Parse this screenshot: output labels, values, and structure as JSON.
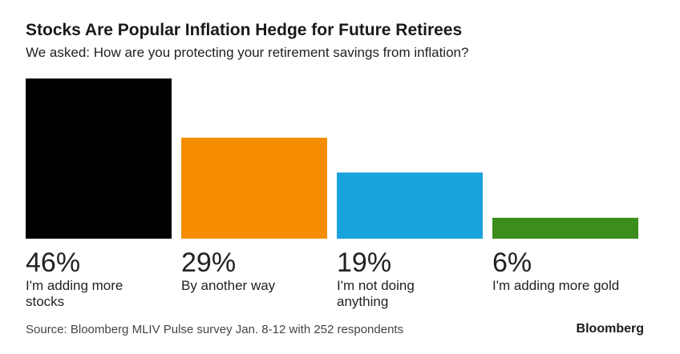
{
  "chart_data": {
    "type": "bar",
    "title": "Stocks Are Popular Inflation Hedge for Future Retirees",
    "subtitle": "We asked: How are you protecting your retirement savings from inflation?",
    "categories": [
      "I'm adding more stocks",
      "By another way",
      "I'm not doing anything",
      "I'm adding more gold"
    ],
    "values": [
      46,
      29,
      19,
      6
    ],
    "value_labels": [
      "46%",
      "29%",
      "19%",
      "6%"
    ],
    "colors": [
      "#000000",
      "#f68d00",
      "#19a3dc",
      "#3c8c1e"
    ],
    "source": "Source: Bloomberg MLIV Pulse survey Jan. 8-12 with 252 respondents",
    "logo": "Bloomberg"
  }
}
